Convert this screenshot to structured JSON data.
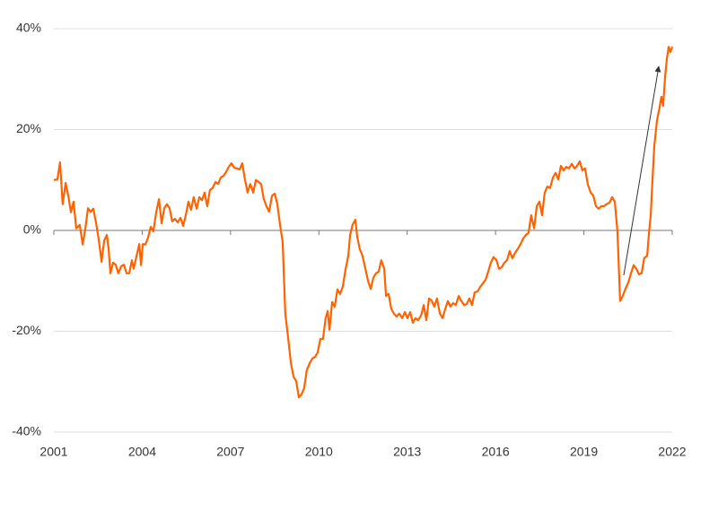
{
  "chart_data": {
    "type": "line",
    "x": [
      2001.0,
      2001.12,
      2001.21,
      2001.3,
      2001.4,
      2001.49,
      2001.58,
      2001.67,
      2001.76,
      2001.88,
      2001.98,
      2002.07,
      2002.16,
      2002.25,
      2002.34,
      2002.43,
      2002.52,
      2002.62,
      2002.71,
      2002.8,
      2002.86,
      2002.92,
      2003.01,
      2003.1,
      2003.19,
      2003.29,
      2003.38,
      2003.47,
      2003.56,
      2003.65,
      2003.71,
      2003.8,
      2003.9,
      2003.96,
      2004.02,
      2004.11,
      2004.2,
      2004.29,
      2004.38,
      2004.47,
      2004.57,
      2004.66,
      2004.75,
      2004.84,
      2004.93,
      2005.02,
      2005.11,
      2005.21,
      2005.3,
      2005.39,
      2005.48,
      2005.57,
      2005.66,
      2005.75,
      2005.85,
      2005.94,
      2006.03,
      2006.12,
      2006.21,
      2006.3,
      2006.39,
      2006.49,
      2006.58,
      2006.67,
      2006.76,
      2006.85,
      2006.94,
      2007.03,
      2007.13,
      2007.22,
      2007.31,
      2007.4,
      2007.49,
      2007.58,
      2007.67,
      2007.77,
      2007.86,
      2007.95,
      2008.04,
      2008.13,
      2008.22,
      2008.31,
      2008.41,
      2008.5,
      2008.59,
      2008.68,
      2008.77,
      2008.86,
      2008.95,
      2009.05,
      2009.14,
      2009.23,
      2009.32,
      2009.41,
      2009.5,
      2009.59,
      2009.69,
      2009.78,
      2009.87,
      2009.96,
      2010.05,
      2010.14,
      2010.23,
      2010.3,
      2010.36,
      2010.45,
      2010.54,
      2010.63,
      2010.72,
      2010.81,
      2010.91,
      2011.0,
      2011.06,
      2011.15,
      2011.24,
      2011.3,
      2011.39,
      2011.48,
      2011.58,
      2011.67,
      2011.76,
      2011.85,
      2011.94,
      2012.03,
      2012.12,
      2012.22,
      2012.28,
      2012.37,
      2012.46,
      2012.55,
      2012.64,
      2012.73,
      2012.83,
      2012.92,
      2013.01,
      2013.1,
      2013.19,
      2013.28,
      2013.37,
      2013.47,
      2013.56,
      2013.65,
      2013.74,
      2013.83,
      2013.92,
      2014.01,
      2014.11,
      2014.2,
      2014.29,
      2014.38,
      2014.47,
      2014.56,
      2014.65,
      2014.75,
      2014.84,
      2014.93,
      2015.02,
      2015.11,
      2015.2,
      2015.29,
      2015.39,
      2015.48,
      2015.57,
      2015.66,
      2015.75,
      2015.84,
      2015.93,
      2016.03,
      2016.12,
      2016.21,
      2016.3,
      2016.39,
      2016.48,
      2016.57,
      2016.67,
      2016.76,
      2016.85,
      2016.94,
      2017.03,
      2017.12,
      2017.21,
      2017.31,
      2017.4,
      2017.49,
      2017.58,
      2017.67,
      2017.76,
      2017.85,
      2017.95,
      2018.04,
      2018.13,
      2018.22,
      2018.31,
      2018.4,
      2018.49,
      2018.59,
      2018.68,
      2018.77,
      2018.86,
      2018.95,
      2019.04,
      2019.13,
      2019.23,
      2019.32,
      2019.41,
      2019.5,
      2019.59,
      2019.68,
      2019.77,
      2019.87,
      2019.96,
      2020.05,
      2020.14,
      2020.23,
      2020.32,
      2020.41,
      2020.51,
      2020.6,
      2020.69,
      2020.78,
      2020.87,
      2020.96,
      2021.05,
      2021.15,
      2021.21,
      2021.27,
      2021.33,
      2021.39,
      2021.48,
      2021.57,
      2021.63,
      2021.69,
      2021.76,
      2021.82,
      2021.88,
      2021.94,
      2022.0
    ],
    "series": [
      {
        "color": "#ff6200",
        "values": [
          10.0,
          10.1,
          13.5,
          5.2,
          9.4,
          6.9,
          3.6,
          5.7,
          0.4,
          1.1,
          -2.8,
          0.4,
          4.4,
          3.7,
          4.3,
          1.6,
          -1.6,
          -6.2,
          -2.0,
          -0.9,
          -3.7,
          -8.5,
          -6.4,
          -6.8,
          -8.5,
          -7.1,
          -6.8,
          -8.5,
          -8.5,
          -5.9,
          -7.6,
          -5.3,
          -2.7,
          -6.9,
          -2.7,
          -2.8,
          -1.4,
          0.7,
          -0.2,
          3.4,
          6.2,
          1.4,
          4.4,
          5.2,
          4.4,
          1.8,
          2.3,
          1.6,
          2.5,
          0.9,
          3.0,
          5.7,
          4.1,
          6.6,
          4.3,
          6.6,
          6.0,
          7.5,
          4.8,
          8.0,
          8.4,
          9.6,
          9.2,
          10.5,
          10.8,
          11.6,
          12.6,
          13.3,
          12.4,
          12.3,
          12.1,
          13.3,
          10.1,
          7.5,
          9.2,
          7.5,
          10.0,
          9.6,
          9.2,
          6.2,
          4.8,
          3.7,
          6.9,
          7.3,
          5.2,
          1.2,
          -2.3,
          -16.5,
          -21.0,
          -26.3,
          -29.0,
          -29.9,
          -33.1,
          -32.5,
          -31.3,
          -27.7,
          -26.3,
          -25.4,
          -25.1,
          -24.2,
          -21.5,
          -21.5,
          -17.4,
          -16.0,
          -19.7,
          -14.2,
          -15.1,
          -11.7,
          -12.6,
          -11.2,
          -7.6,
          -5.0,
          -0.9,
          1.2,
          2.1,
          -1.2,
          -3.7,
          -5.0,
          -7.6,
          -10.0,
          -11.6,
          -9.4,
          -8.5,
          -8.2,
          -5.9,
          -7.6,
          -13.0,
          -12.6,
          -15.6,
          -16.5,
          -17.1,
          -16.5,
          -17.4,
          -16.2,
          -17.4,
          -16.2,
          -18.3,
          -17.4,
          -17.8,
          -16.9,
          -14.8,
          -17.8,
          -13.5,
          -13.9,
          -15.1,
          -13.5,
          -16.5,
          -17.4,
          -15.6,
          -14.0,
          -15.1,
          -14.4,
          -14.8,
          -13.0,
          -14.0,
          -14.8,
          -14.6,
          -13.5,
          -14.8,
          -12.3,
          -12.1,
          -11.2,
          -10.5,
          -9.8,
          -8.2,
          -6.4,
          -5.3,
          -5.9,
          -7.6,
          -7.3,
          -6.4,
          -5.9,
          -4.1,
          -5.5,
          -4.4,
          -3.6,
          -2.7,
          -1.6,
          -0.9,
          -0.5,
          3.0,
          0.4,
          4.8,
          5.7,
          3.0,
          7.5,
          8.7,
          8.4,
          10.5,
          11.4,
          10.1,
          12.8,
          11.9,
          12.6,
          12.3,
          13.2,
          12.3,
          12.8,
          13.7,
          11.9,
          12.3,
          9.2,
          7.5,
          6.9,
          4.8,
          4.3,
          4.8,
          4.8,
          5.2,
          5.5,
          6.6,
          5.7,
          -0.2,
          -14.0,
          -13.0,
          -11.6,
          -10.3,
          -8.5,
          -6.9,
          -7.6,
          -8.7,
          -8.5,
          -5.5,
          -5.0,
          -0.5,
          3.0,
          10.1,
          16.7,
          21.7,
          24.4,
          26.5,
          24.7,
          30.6,
          34.1,
          36.4,
          35.4,
          36.4
        ]
      }
    ],
    "xlim": [
      2001,
      2022
    ],
    "xticks": [
      2001,
      2004,
      2007,
      2010,
      2013,
      2016,
      2019,
      2022
    ],
    "ylim": [
      -40,
      40
    ],
    "yticks": [
      {
        "value": 40,
        "label": "40%"
      },
      {
        "value": 20,
        "label": "20%"
      },
      {
        "value": 0,
        "label": "0%"
      },
      {
        "value": -20,
        "label": "-20%"
      },
      {
        "value": -40,
        "label": "-40%"
      }
    ],
    "grid": true
  }
}
